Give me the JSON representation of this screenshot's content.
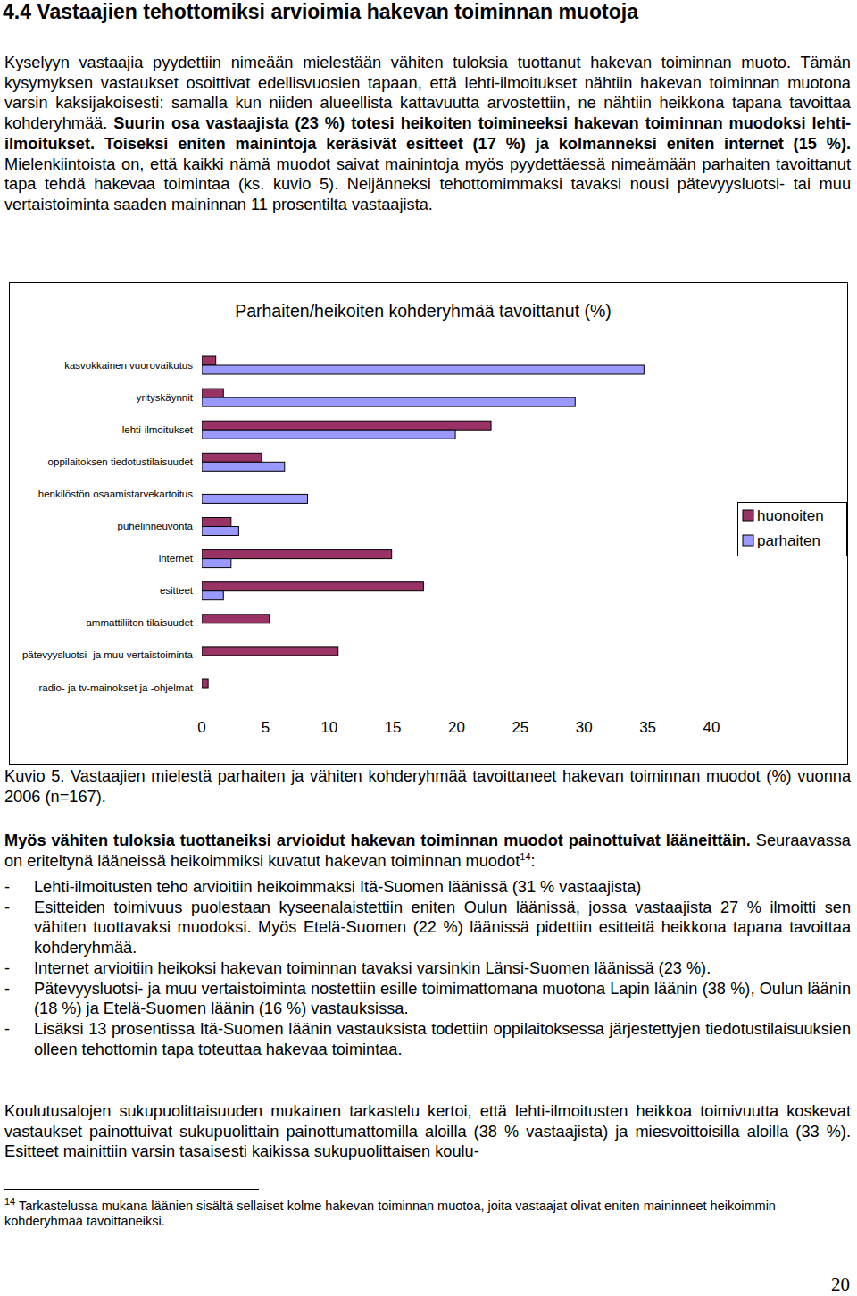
{
  "document": {
    "heading": "4.4 Vastaajien tehottomiksi arvioimia hakevan toiminnan muotoja",
    "intro": [
      {
        "text": "Kyselyyn vastaajia pyydettiin nimeään mielestään vähiten tuloksia tuottanut hakevan toiminnan muoto. Tämän kysymyksen vastaukset osoittivat edellisvuosien tapaan, että lehti-ilmoitukset nähtiin hakevan toiminnan muotona varsin kaksijakoisesti: samalla kun niiden alueellista kattavuutta arvostettiin, ne nähtiin heikkona tapana tavoittaa kohderyhmää. ",
        "bold": false
      },
      {
        "text": "Suurin osa vastaajista (23 %) totesi heikoiten toimineeksi hakevan toiminnan muodoksi lehti-ilmoitukset. Toiseksi eniten mainintoja keräsivät esitteet (17 %) ja kolmanneksi eniten internet (15 %).",
        "bold": true
      },
      {
        "text": " Mielenkiintoista on, että kaikki nämä muodot saivat mainintoja myös pyydettäessä nimeämään parhaiten tavoittanut tapa tehdä hakevaa toimintaa (ks. kuvio 5). Neljänneksi tehottomimmaksi tavaksi nousi pätevyysluotsi- tai muu vertaistoiminta saaden maininnan 11 prosentilta vastaajista.",
        "bold": false
      }
    ],
    "caption": "Kuvio 5. Vastaajien mielestä parhaiten ja vähiten kohderyhmää tavoittaneet hakevan toiminnan muodot (%) vuonna 2006 (n=167).",
    "section": [
      {
        "text": "Myös vähiten tuloksia tuottaneiksi arvioidut hakevan toiminnan muodot painottuivat lääneittäin.",
        "bold": true
      },
      {
        "text": " Seuraavassa on eriteltynä lääneissä heikoimmiksi kuvatut hakevan toiminnan muodot",
        "bold": false
      },
      {
        "text": "14",
        "sup": true
      },
      {
        "text": ":",
        "bold": false
      }
    ],
    "bullets": [
      "Lehti-ilmoitusten teho arvioitiin heikoimmaksi Itä-Suomen läänissä (31 % vastaajista)",
      "Esitteiden toimivuus puolestaan kyseenalaistettiin eniten Oulun läänissä, jossa vastaajista 27 % ilmoitti sen vähiten tuottavaksi muodoksi. Myös Etelä-Suomen (22 %) läänissä pidettiin esitteitä heikkona tapana tavoittaa kohderyhmää.",
      "Internet arvioitiin heikoksi hakevan toiminnan tavaksi varsinkin Länsi-Suomen läänissä (23 %).",
      "Pätevyysluotsi- ja muu vertaistoiminta nostettiin esille toimimattomana muotona Lapin läänin (38 %), Oulun läänin (18 %) ja Etelä-Suomen läänin (16 %) vastauksissa.",
      "Lisäksi 13 prosentissa Itä-Suomen läänin vastauksista todettiin oppilaitoksessa järjestettyjen tiedotustilaisuuksien olleen tehottomin tapa toteuttaa hakevaa toimintaa."
    ],
    "closing": "Koulutusalojen sukupuolittaisuuden mukainen tarkastelu kertoi, että lehti-ilmoitusten heikkoa toimivuutta koskevat vastaukset painottuivat sukupuolittain painottumattomilla aloilla (38 % vastaajista) ja miesvoittoisilla aloilla (33 %). Esitteet mainittiin varsin tasaisesti kaikissa sukupuolittaisen koulu-",
    "footnote": {
      "marker": "14",
      "text": " Tarkastelussa mukana läänien sisältä sellaiset kolme hakevan toiminnan muotoa, joita vastaajat olivat eniten maininneet heikoimmin kohderyhmää tavoittaneiksi."
    },
    "page_number": "20"
  },
  "chart_data": {
    "type": "bar",
    "orientation": "horizontal",
    "title": "Parhaiten/heikoiten kohderyhmää tavoittanut (%)",
    "categories": [
      "kasvokkainen vuorovaikutus",
      "yrityskäynnit",
      "lehti-ilmoitukset",
      "oppilaitoksen tiedotustilaisuudet",
      "henkilöstön osaamistarvekartoitus",
      "puhelinneuvonta",
      "internet",
      "esitteet",
      "ammattiliiton tilaisuudet",
      "pätevyysluotsi- ja muu vertaistoiminta",
      "radio- ja tv-mainokset ja -ohjelmat"
    ],
    "series": [
      {
        "name": "huonoiten",
        "color": "#993366",
        "values": [
          1.1,
          1.7,
          22.7,
          4.7,
          0,
          2.3,
          14.9,
          17.4,
          5.3,
          10.7,
          0.5
        ]
      },
      {
        "name": "parhaiten",
        "color": "#9999ff",
        "values": [
          34.7,
          29.3,
          19.9,
          6.5,
          8.3,
          2.9,
          2.3,
          1.7,
          0,
          0,
          0
        ]
      }
    ],
    "xlim": [
      0,
      40
    ],
    "xticks": [
      0,
      5,
      10,
      15,
      20,
      25,
      30,
      35,
      40
    ],
    "legend": "right",
    "grid": false
  }
}
